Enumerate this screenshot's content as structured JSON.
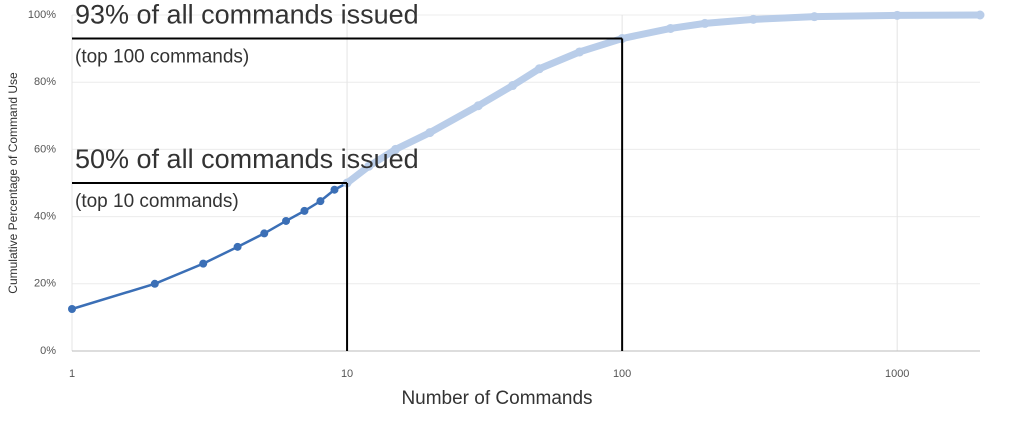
{
  "chart_data": {
    "type": "line",
    "log_x": true,
    "grid": true,
    "x_label": "Number of Commands",
    "y_label": "Cumulative Percentage of Command Use",
    "xlim": [
      1,
      2000
    ],
    "xticks": [
      1,
      10,
      100,
      1000
    ],
    "ylim": [
      0,
      100
    ],
    "yticks": [
      {
        "value": 0,
        "label": "0%"
      },
      {
        "value": 20,
        "label": "20%"
      },
      {
        "value": 40,
        "label": "40%"
      },
      {
        "value": 60,
        "label": "60%"
      },
      {
        "value": 80,
        "label": "80%"
      },
      {
        "value": 100,
        "label": "100%"
      }
    ],
    "series": [
      {
        "color": "#3b6fb6",
        "x": [
          1,
          2,
          3,
          4,
          5,
          6,
          7,
          8,
          9,
          10
        ],
        "values": [
          12.5,
          20,
          26,
          31,
          35,
          38.7,
          41.7,
          44.6,
          48,
          50
        ]
      },
      {
        "color": "#b9cde9",
        "x": [
          10,
          12,
          15,
          20,
          30,
          40,
          50,
          70,
          100,
          150,
          200,
          300,
          500,
          1000,
          2000
        ],
        "values": [
          50,
          55,
          60,
          65,
          73,
          79,
          84,
          89,
          93,
          96,
          97.5,
          98.7,
          99.5,
          99.9,
          100
        ]
      }
    ],
    "annotations": [
      {
        "text": "93% of all commands issued",
        "subtext": "(top 100 commands)",
        "x": 100,
        "y": 93
      },
      {
        "text": "50% of all commands issued",
        "subtext": "(top 10 commands)",
        "x": 10,
        "y": 50
      }
    ]
  }
}
